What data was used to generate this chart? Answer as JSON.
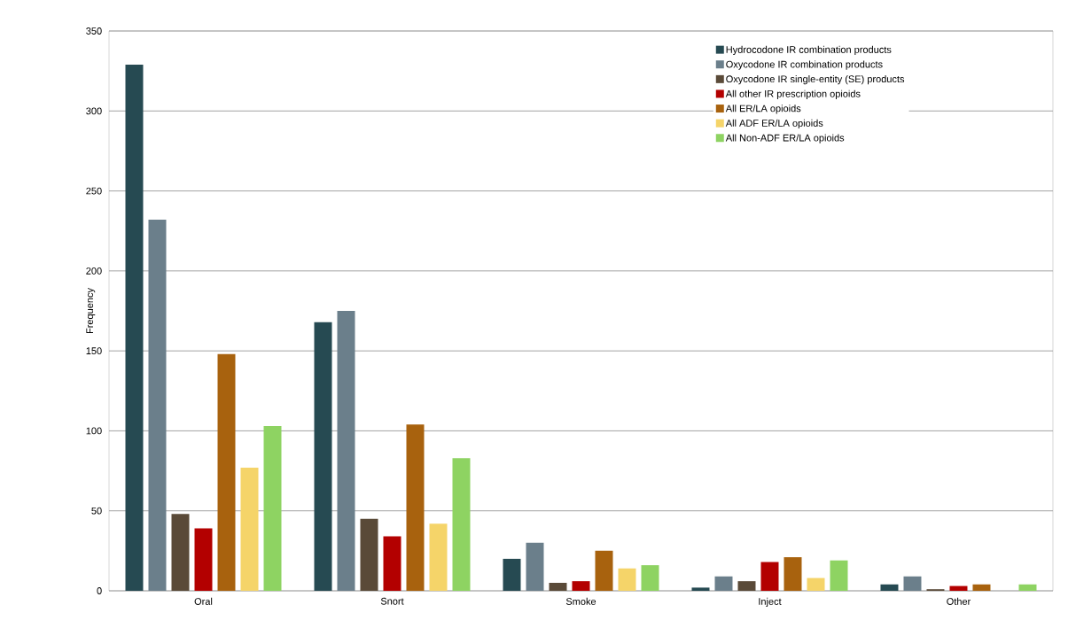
{
  "chart_data": {
    "type": "bar",
    "ylabel": "Frequency",
    "categories": [
      "Oral",
      "Snort",
      "Smoke",
      "Inject",
      "Other"
    ],
    "series": [
      {
        "name": "Hydrocodone IR combination products",
        "color": "#264a52",
        "values": [
          329,
          168,
          20,
          2,
          4
        ]
      },
      {
        "name": "Oxycodone IR combination products",
        "color": "#6b7f8b",
        "values": [
          232,
          175,
          30,
          9,
          9
        ]
      },
      {
        "name": "Oxycodone IR single-entity (SE) products",
        "color": "#5a4a38",
        "values": [
          48,
          45,
          5,
          6,
          1
        ]
      },
      {
        "name": "All other IR prescription opioids",
        "color": "#b30000",
        "values": [
          39,
          34,
          6,
          18,
          3
        ]
      },
      {
        "name": "All ER/LA opioids",
        "color": "#a8620e",
        "values": [
          148,
          104,
          25,
          21,
          4
        ]
      },
      {
        "name": "All ADF ER/LA opioids",
        "color": "#f5d469",
        "values": [
          77,
          42,
          14,
          8,
          0
        ]
      },
      {
        "name": "All Non-ADF ER/LA opioids",
        "color": "#8ed362",
        "values": [
          103,
          83,
          16,
          19,
          4
        ]
      }
    ],
    "ylim": [
      0,
      350
    ],
    "yticks": [
      0,
      50,
      100,
      150,
      200,
      250,
      300,
      350
    ],
    "grid": "y",
    "legend": "top right"
  }
}
